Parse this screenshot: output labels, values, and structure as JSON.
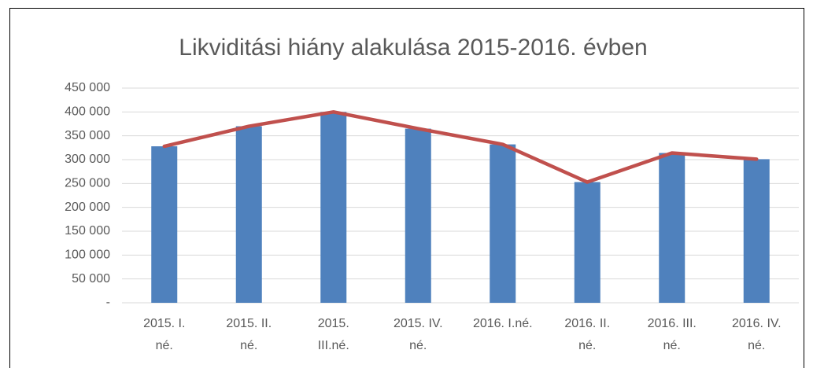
{
  "chart_data": {
    "type": "bar",
    "title": "Likviditási hiány alakulása 2015-2016. évben",
    "categories": [
      [
        "2015. I.",
        "né."
      ],
      [
        "2015. II.",
        "né."
      ],
      [
        "2015.",
        "III.né."
      ],
      [
        "2015. IV.",
        "né."
      ],
      [
        "2016. I.né."
      ],
      [
        "2016. II.",
        "né."
      ],
      [
        "2016. III.",
        "né."
      ],
      [
        "2016. IV.",
        "né."
      ]
    ],
    "series": [
      {
        "type": "bar",
        "color": "#4f81bd",
        "values": [
          328000,
          370000,
          400000,
          365000,
          332000,
          253000,
          314000,
          301000
        ]
      },
      {
        "type": "line",
        "color": "#c0504d",
        "values": [
          328000,
          370000,
          400000,
          365000,
          332000,
          253000,
          314000,
          301000
        ]
      }
    ],
    "ylim": [
      0,
      450000
    ],
    "yticks": [
      {
        "value": 0,
        "label": "-"
      },
      {
        "value": 50000,
        "label": "50 000"
      },
      {
        "value": 100000,
        "label": "100 000"
      },
      {
        "value": 150000,
        "label": "150 000"
      },
      {
        "value": 200000,
        "label": "200 000"
      },
      {
        "value": 250000,
        "label": "250 000"
      },
      {
        "value": 300000,
        "label": "300 000"
      },
      {
        "value": 350000,
        "label": "350 000"
      },
      {
        "value": 400000,
        "label": "400 000"
      },
      {
        "value": 450000,
        "label": "450 000"
      }
    ],
    "grid": true
  }
}
